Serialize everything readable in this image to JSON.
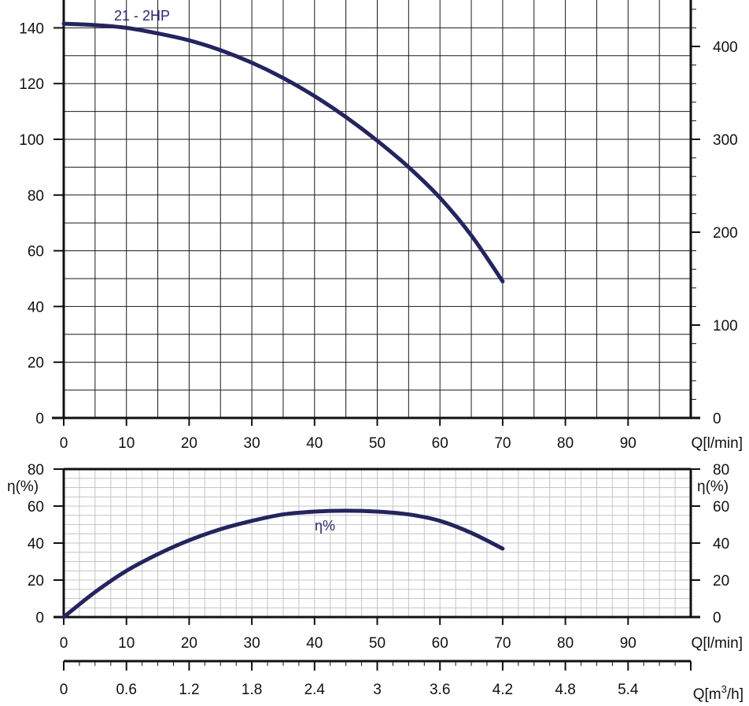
{
  "chart_data": [
    {
      "type": "line",
      "xlim": [
        0,
        100
      ],
      "ylim": [
        0,
        150
      ],
      "y2lim": [
        0,
        450
      ],
      "grid": true,
      "x_ticks": [
        0,
        10,
        20,
        30,
        40,
        50,
        60,
        70,
        80,
        90
      ],
      "y_ticks": [
        0,
        20,
        40,
        60,
        80,
        100,
        120,
        140
      ],
      "y2_ticks": [
        0,
        100,
        200,
        300,
        400
      ],
      "xlabel": "Q[l/min]",
      "series": [
        {
          "name": "21 - 2HP",
          "x": [
            0,
            5,
            10,
            15,
            20,
            25,
            30,
            35,
            40,
            45,
            50,
            55,
            60,
            65,
            70
          ],
          "y": [
            141.5,
            141,
            140,
            138,
            135.5,
            132,
            127.5,
            122,
            115.5,
            108,
            99.5,
            90,
            79,
            65.5,
            49
          ]
        }
      ]
    },
    {
      "type": "line",
      "xlim": [
        0,
        100
      ],
      "ylim": [
        0,
        80
      ],
      "grid": true,
      "x_ticks": [
        0,
        10,
        20,
        30,
        40,
        50,
        60,
        70,
        80,
        90
      ],
      "y_ticks": [
        0,
        20,
        40,
        60,
        80
      ],
      "ylabel": "η(%)",
      "y2label": "η(%)",
      "xlabel": "Q[l/min]",
      "series": [
        {
          "name": "η%",
          "x": [
            0,
            5,
            10,
            15,
            20,
            25,
            30,
            35,
            40,
            45,
            50,
            55,
            60,
            65,
            70
          ],
          "y": [
            0,
            13.5,
            25,
            34,
            41.5,
            47.5,
            52,
            55.5,
            57,
            57.5,
            57,
            55.5,
            52,
            45.5,
            37
          ]
        }
      ]
    },
    {
      "type": "axis",
      "xlim": [
        0,
        6
      ],
      "x_ticks": [
        0,
        0.6,
        1.2,
        1.8,
        2.4,
        3,
        3.6,
        4.2,
        4.8,
        5.4
      ],
      "x_tick_labels": [
        "0",
        "0.6",
        "1.2",
        "1.8",
        "2.4",
        "3",
        "3.6",
        "4.2",
        "4.8",
        "5.4"
      ],
      "xlabel_prefix": "Q[m",
      "xlabel_sup": "3",
      "xlabel_suffix": "/h]"
    }
  ],
  "colors": {
    "curve": "#24245e",
    "axis": "#111111",
    "grid_major": "#1a1a1a",
    "grid_minor": "#c4c4c4"
  }
}
